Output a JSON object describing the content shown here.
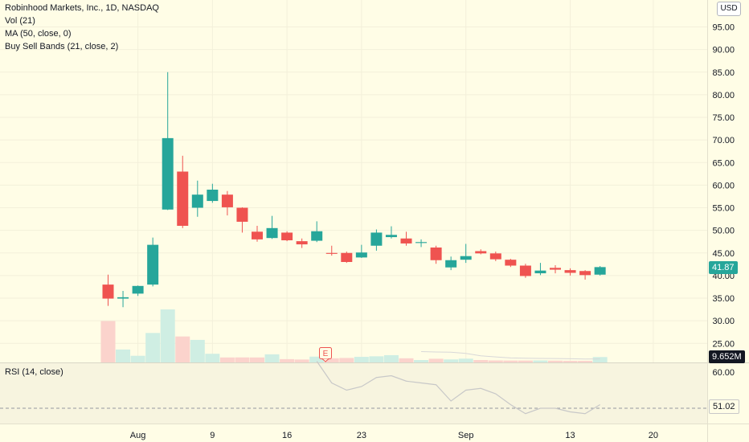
{
  "header": {
    "title": "Robinhood Markets, Inc., 1D, NASDAQ",
    "indicators": [
      "Vol (21)",
      "MA (50, close, 0)",
      "Buy Sell Bands (21, close, 2)"
    ]
  },
  "currency_label": "USD",
  "price_badge": "41.87",
  "volume_badge": "9.652M",
  "rsi": {
    "title": "RSI (14, close)",
    "badge": "51.02"
  },
  "earnings_marker": "E",
  "colors": {
    "background": "#fffde6",
    "up": "#26a69a",
    "down": "#ef5350",
    "up_volume": "#cfeee3",
    "down_volume": "#fbd3cc",
    "rsi_line": "#c8c8c8",
    "volume_ma": "#d8d8d8"
  },
  "chart_data": [
    {
      "type": "candlestick",
      "title": "Robinhood Markets, Inc., 1D, NASDAQ",
      "ylim": [
        20,
        100
      ],
      "y_ticks": [
        25.0,
        30.0,
        35.0,
        40.0,
        45.0,
        50.0,
        55.0,
        60.0,
        65.0,
        70.0,
        75.0,
        80.0,
        85.0,
        90.0,
        95.0
      ],
      "x_tick_labels": [
        {
          "label": "Aug",
          "date": "Aug 2"
        },
        {
          "label": "9",
          "date": "Aug 9"
        },
        {
          "label": "16",
          "date": "Aug 16"
        },
        {
          "label": "23",
          "date": "Aug 23"
        },
        {
          "label": "Sep",
          "date": "Sep 1"
        },
        {
          "label": "13",
          "date": "Sep 13"
        },
        {
          "label": "20",
          "date": "Sep 20"
        }
      ],
      "categories": [
        "Jul 29",
        "Jul 30",
        "Aug 2",
        "Aug 3",
        "Aug 4",
        "Aug 5",
        "Aug 6",
        "Aug 9",
        "Aug 10",
        "Aug 11",
        "Aug 12",
        "Aug 13",
        "Aug 16",
        "Aug 17",
        "Aug 18",
        "Aug 19",
        "Aug 20",
        "Aug 23",
        "Aug 24",
        "Aug 25",
        "Aug 26",
        "Aug 27",
        "Aug 30",
        "Aug 31",
        "Sep 1",
        "Sep 2",
        "Sep 3",
        "Sep 7",
        "Sep 8",
        "Sep 9",
        "Sep 10",
        "Sep 13",
        "Sep 14",
        "Sep 15"
      ],
      "ohlc": [
        [
          38.0,
          40.2,
          33.3,
          34.9
        ],
        [
          34.9,
          36.6,
          33.0,
          35.2
        ],
        [
          36.0,
          37.8,
          35.5,
          37.7
        ],
        [
          38.0,
          48.4,
          37.6,
          46.8
        ],
        [
          54.6,
          85.0,
          54.5,
          70.4
        ],
        [
          63.0,
          66.5,
          50.5,
          51.0
        ],
        [
          55.0,
          61.0,
          53.0,
          57.9
        ],
        [
          56.5,
          60.3,
          56.1,
          59.0
        ],
        [
          57.9,
          58.7,
          53.3,
          55.1
        ],
        [
          55.0,
          55.1,
          49.5,
          51.9
        ],
        [
          49.7,
          51.0,
          47.5,
          48.0
        ],
        [
          48.3,
          53.2,
          48.1,
          50.5
        ],
        [
          49.5,
          49.8,
          47.6,
          47.8
        ],
        [
          47.6,
          48.2,
          46.1,
          46.9
        ],
        [
          47.7,
          52.0,
          47.4,
          49.8
        ],
        [
          45.0,
          46.6,
          44.4,
          44.8
        ],
        [
          45.0,
          45.3,
          42.8,
          43.0
        ],
        [
          44.0,
          46.8,
          43.9,
          45.1
        ],
        [
          46.6,
          50.2,
          45.5,
          49.5
        ],
        [
          48.5,
          50.9,
          48.2,
          49.0
        ],
        [
          48.2,
          49.7,
          46.6,
          47.1
        ],
        [
          47.2,
          48.0,
          46.3,
          47.4
        ],
        [
          46.2,
          46.6,
          42.6,
          43.4
        ],
        [
          41.8,
          44.2,
          41.2,
          43.4
        ],
        [
          43.5,
          47.0,
          42.8,
          44.3
        ],
        [
          45.4,
          45.8,
          44.7,
          44.9
        ],
        [
          44.9,
          45.3,
          43.2,
          43.6
        ],
        [
          43.5,
          43.7,
          41.9,
          42.2
        ],
        [
          42.2,
          42.6,
          39.5,
          39.9
        ],
        [
          40.5,
          42.8,
          40.1,
          41.1
        ],
        [
          41.7,
          42.3,
          40.5,
          41.3
        ],
        [
          41.2,
          41.6,
          40.0,
          40.6
        ],
        [
          41.0,
          41.2,
          39.1,
          40.1
        ],
        [
          40.2,
          42.1,
          40.0,
          41.87
        ]
      ],
      "volume_millions": [
        74.0,
        23.1,
        11.9,
        52.7,
        94.8,
        46.4,
        40.3,
        15.5,
        8.9,
        9.0,
        8.9,
        14.5,
        5.9,
        5.2,
        10.4,
        7.4,
        8.0,
        10.0,
        11.0,
        13.0,
        7.4,
        4.3,
        6.6,
        5.4,
        6.8,
        4.3,
        3.6,
        3.4,
        3.4,
        3.6,
        3.2,
        2.8,
        2.8,
        9.652
      ],
      "volume_ma_visible": true
    },
    {
      "type": "line",
      "title": "RSI (14, close)",
      "ylim": [
        43,
        66
      ],
      "y_ticks": [
        60.0
      ],
      "categories": [
        "Aug 18",
        "Aug 19",
        "Aug 20",
        "Aug 23",
        "Aug 24",
        "Aug 25",
        "Aug 26",
        "Aug 27",
        "Aug 30",
        "Aug 31",
        "Sep 1",
        "Sep 2",
        "Sep 3",
        "Sep 7",
        "Sep 8",
        "Sep 9",
        "Sep 10",
        "Sep 13",
        "Sep 14",
        "Sep 15"
      ],
      "values": [
        63.0,
        57.0,
        55.0,
        56.0,
        58.5,
        59.0,
        57.5,
        57.0,
        56.5,
        52.0,
        55.0,
        55.5,
        54.0,
        51.0,
        48.5,
        50.0,
        50.0,
        49.0,
        48.5,
        51.0
      ],
      "reference_level": 50,
      "last_value": 51.02
    }
  ]
}
